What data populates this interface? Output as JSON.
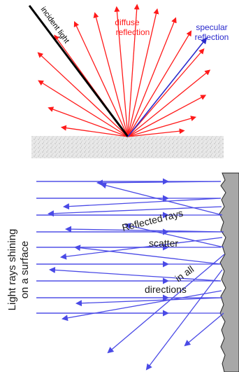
{
  "top_diagram": {
    "incident_label": "incident light",
    "diffuse_label_line1": "diffuse",
    "diffuse_label_line2": "reflection",
    "specular_label_line1": "specular",
    "specular_label_line2": "reflection",
    "colors": {
      "incident": "#000000",
      "diffuse": "#ff1a1a",
      "specular": "#2a2acc",
      "surface": "#d9d9d9"
    }
  },
  "bottom_diagram": {
    "side_label_line1": "Light rays shining",
    "side_label_line2": "on a surface",
    "word_reflected": "Reflected rays",
    "word_scatter": "scatter",
    "word_in_all": "in all",
    "word_directions": "directions",
    "colors": {
      "ray": "#4a4ae6",
      "wall": "#a8a8a8",
      "text": "#1a1a1a"
    }
  }
}
